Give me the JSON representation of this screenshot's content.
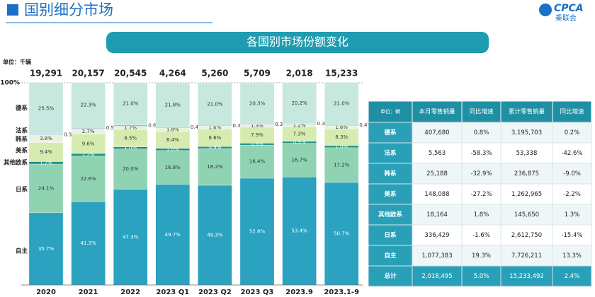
{
  "page_title": "国别细分市场",
  "logo": {
    "text": "CPCA",
    "subtext": "乘联会"
  },
  "chart_data": {
    "type": "stacked_bar",
    "title": "各国别市场份额变化",
    "unit": "单位：千辆",
    "categories": [
      "2020",
      "2021",
      "2022",
      "2023 Q1",
      "2023 Q2",
      "2023 Q3",
      "2023.9",
      "2023.1-9"
    ],
    "ylim": [
      0,
      100
    ],
    "yticks": [
      {
        "value": 100,
        "label": "100%"
      }
    ],
    "totals": {
      "values": [
        19291,
        20157,
        20545,
        4264,
        5260,
        5709,
        2018,
        15233
      ],
      "value_labels": [
        "19,291",
        "20,157",
        "20,545",
        "4,264",
        "5,260",
        "5,709",
        "2,018",
        "15,233"
      ]
    },
    "series": [
      {
        "name": "自主",
        "color": "#2aa2c0",
        "values": [
          35.7,
          41.2,
          47.3,
          49.7,
          49.3,
          52.8,
          53.4,
          50.7
        ],
        "value_labels": [
          "35.7%",
          "41.2%",
          "47.3%",
          "49.7%",
          "49.3%",
          "52.8%",
          "53.4%",
          "50.7%"
        ]
      },
      {
        "name": "日系",
        "color": "#8fd3b2",
        "values": [
          24.1,
          22.6,
          20.0,
          16.8,
          18.2,
          16.4,
          16.7,
          17.2
        ],
        "value_labels": [
          "24.1%",
          "22.6%",
          "20.0%",
          "16.8%",
          "18.2%",
          "16.4%",
          "16.7%",
          "17.2%"
        ]
      },
      {
        "name": "其他欧系",
        "color": "#1a8f88",
        "values": [
          1.2,
          1.2,
          1.0,
          1.0,
          0.9,
          0.9,
          0.9,
          1.0
        ],
        "value_labels": [
          "1.2%",
          "1.2%",
          "1.0%",
          "1.0%",
          "0.9%",
          "0.9%",
          "0.9%",
          "1.0%"
        ]
      },
      {
        "name": "美系",
        "color": "#d6ebb0",
        "values": [
          9.4,
          9.6,
          8.5,
          8.4,
          8.6,
          7.9,
          7.3,
          8.3
        ],
        "value_labels": [
          "9.4%",
          "9.6%",
          "8.5%",
          "8.4%",
          "8.6%",
          "7.9%",
          "7.3%",
          "8.3%"
        ]
      },
      {
        "name": "韩系",
        "color": "#eaf4dc",
        "values": [
          3.8,
          2.7,
          1.7,
          1.8,
          1.6,
          1.3,
          1.2,
          1.6
        ],
        "value_labels": [
          "3.8%",
          "2.7%",
          "1.7%",
          "1.8%",
          "1.6%",
          "1.3%",
          "1.2%",
          "1.6%"
        ]
      },
      {
        "name": "法系",
        "color": "#9fb6df",
        "values": [
          0.3,
          0.5,
          0.6,
          0.4,
          0.3,
          0.3,
          0.3,
          0.4
        ],
        "value_labels": [
          "0.3%",
          "0.5%",
          "0.6%",
          "0.4%",
          "0.3%",
          "0.3%",
          "0.3%",
          "0.4%"
        ]
      },
      {
        "name": "德系",
        "color": "#c6e8de",
        "values": [
          25.5,
          22.3,
          21.0,
          21.8,
          21.0,
          20.3,
          20.2,
          21.0
        ],
        "value_labels": [
          "25.5%",
          "22.3%",
          "21.0%",
          "21.8%",
          "21.0%",
          "20.3%",
          "20.2%",
          "21.0%"
        ]
      }
    ]
  },
  "table": {
    "header": [
      "单位：辆",
      "本月零售销量",
      "同比增速",
      "累计零售销量",
      "同比增速"
    ],
    "rows": [
      [
        "德系",
        "407,680",
        "0.8%",
        "3,195,703",
        "0.2%"
      ],
      [
        "法系",
        "5,563",
        "-58.3%",
        "53,338",
        "-42.6%"
      ],
      [
        "韩系",
        "25,188",
        "-32.9%",
        "236,875",
        "-9.0%"
      ],
      [
        "美系",
        "148,088",
        "-27.2%",
        "1,262,965",
        "-2.2%"
      ],
      [
        "其他欧系",
        "18,164",
        "1.8%",
        "145,650",
        "1.3%"
      ],
      [
        "日系",
        "336,429",
        "-1.6%",
        "2,612,750",
        "-15.4%"
      ],
      [
        "自主",
        "1,077,383",
        "19.3%",
        "7,726,211",
        "13.3%"
      ],
      [
        "总计",
        "2,018,495",
        "5.0%",
        "15,233,492",
        "2.4%"
      ]
    ]
  }
}
